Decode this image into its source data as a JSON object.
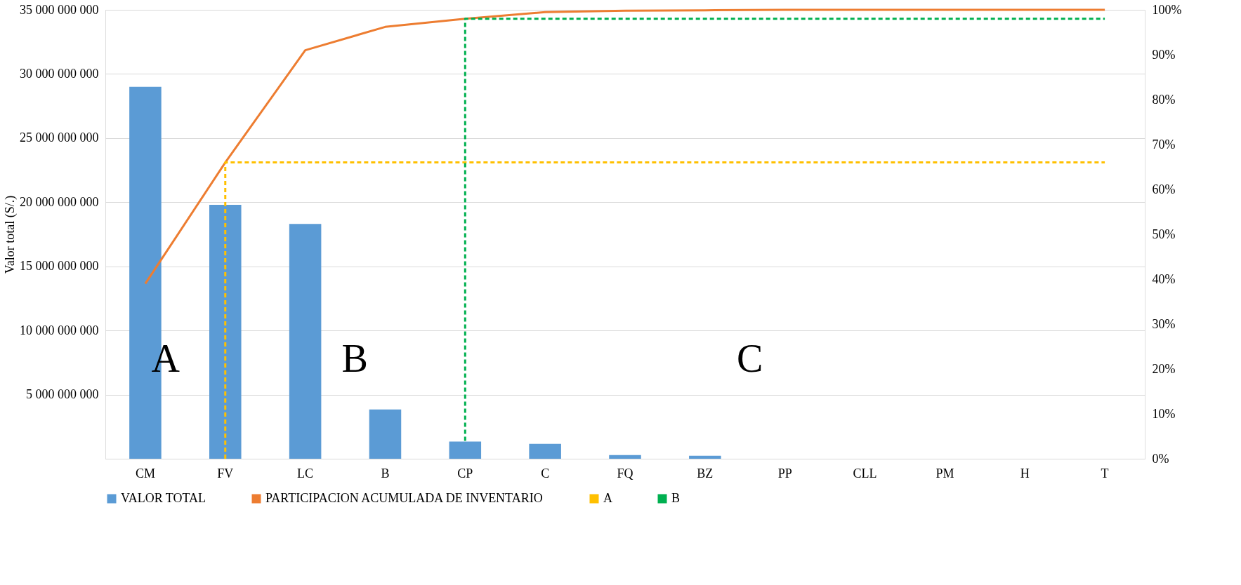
{
  "chart_data": {
    "type": "bar",
    "ylabel": "Valor total (S/.)",
    "categories": [
      "CM",
      "FV",
      "LC",
      "B",
      "CP",
      "C",
      "FQ",
      "BZ",
      "PP",
      "CLL",
      "PM",
      "H",
      "T"
    ],
    "series": [
      {
        "name": "VALOR TOTAL",
        "color": "#5b9bd5",
        "values": [
          29000000000,
          19800000000,
          18300000000,
          3840000000,
          1340000000,
          1160000000,
          290000000,
          230000000,
          0,
          0,
          0,
          0,
          0
        ]
      },
      {
        "name": "PARTICIPACION ACUMULADA DE INVENTARIO",
        "type": "line",
        "axis": "y2",
        "color": "#ed7d31",
        "line_style": "solid",
        "values": [
          39,
          66,
          91,
          96.2,
          98,
          99.5,
          99.8,
          99.9,
          100,
          100,
          100,
          100,
          100
        ]
      },
      {
        "name": "A",
        "type": "line",
        "axis": "y2",
        "color": "#ffc000",
        "line_style": "dashed",
        "x": [
          "FV",
          "FV",
          "T"
        ],
        "values": [
          0,
          66,
          66
        ]
      },
      {
        "name": "B",
        "type": "line",
        "axis": "y2",
        "color": "#00b050",
        "line_style": "dashed",
        "x": [
          "CP",
          "CP",
          "T"
        ],
        "values": [
          4,
          98,
          98
        ]
      }
    ],
    "ylim": [
      0,
      35000000000
    ],
    "yticks": [
      {
        "value": 0,
        "label": null
      },
      {
        "value": 5000000000,
        "label": "5 000 000 000"
      },
      {
        "value": 10000000000,
        "label": "10 000 000 000"
      },
      {
        "value": 15000000000,
        "label": "15 000 000 000"
      },
      {
        "value": 20000000000,
        "label": "20 000 000 000"
      },
      {
        "value": 25000000000,
        "label": "25 000 000 000"
      },
      {
        "value": 30000000000,
        "label": "30 000 000 000"
      },
      {
        "value": 35000000000,
        "label": "35 000 000 000"
      }
    ],
    "y2lim": [
      0,
      100
    ],
    "y2ticks": [
      {
        "value": 0,
        "label": "0%"
      },
      {
        "value": 10,
        "label": "10%"
      },
      {
        "value": 20,
        "label": "20%"
      },
      {
        "value": 30,
        "label": "30%"
      },
      {
        "value": 40,
        "label": "40%"
      },
      {
        "value": 50,
        "label": "50%"
      },
      {
        "value": 60,
        "label": "60%"
      },
      {
        "value": 70,
        "label": "70%"
      },
      {
        "value": 80,
        "label": "80%"
      },
      {
        "value": 90,
        "label": "90%"
      },
      {
        "value": 100,
        "label": "100%"
      }
    ],
    "annotations": [
      "A",
      "B",
      "C"
    ],
    "grid": "y",
    "legend": "bottom"
  }
}
